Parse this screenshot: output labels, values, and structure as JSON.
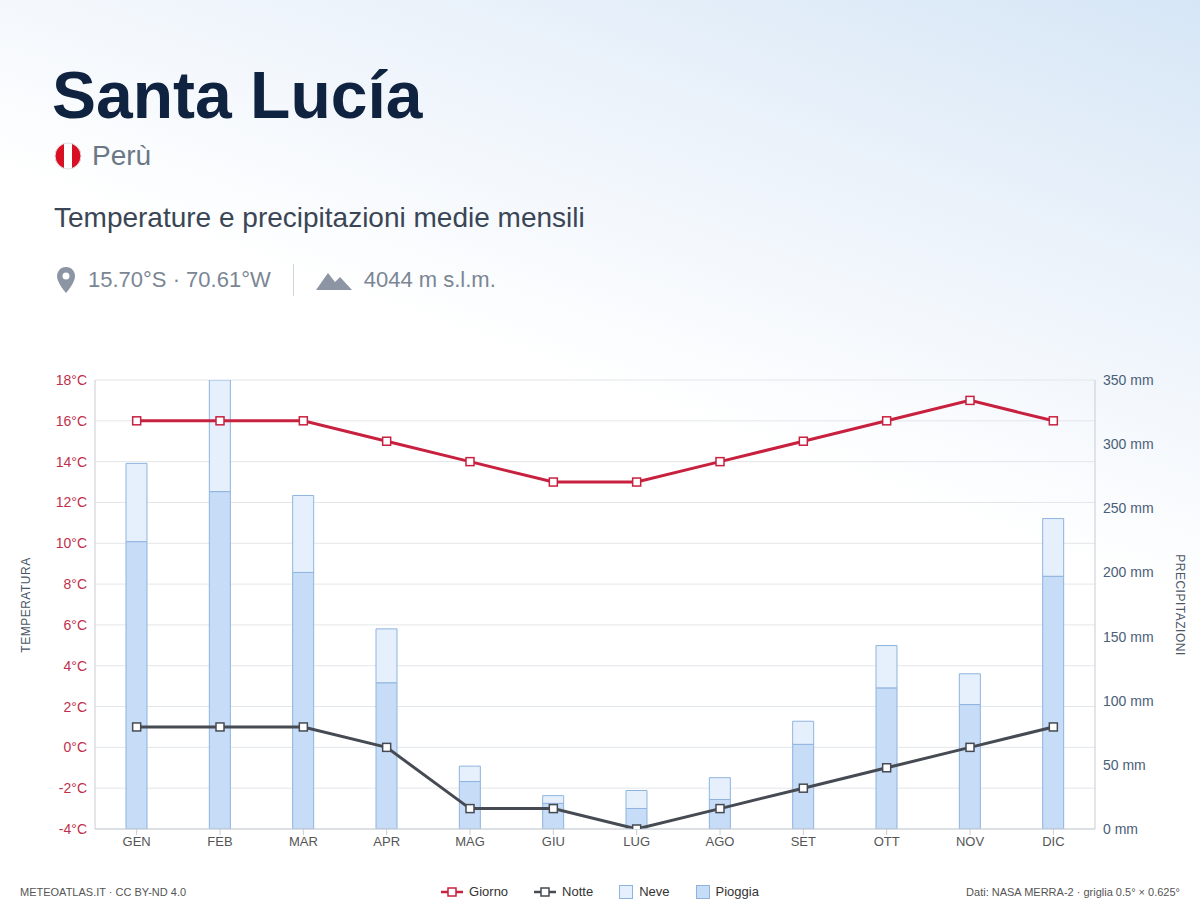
{
  "chart_data": {
    "type": "bar",
    "title": "Santa Lucía",
    "subtitle": "Temperature e precipitazioni medie mensili",
    "annotations": [
      "Perù",
      "15.70°S · 70.61°W",
      "4044 m s.l.m.",
      "METEOATLAS.IT · CC BY-ND 4.0",
      "Dati: NASA MERRA-2 · griglia 0.5° × 0.625°"
    ],
    "y_label": "TEMPERATURA",
    "y2_label": "PRECIPITAZIONI",
    "categories": [
      "GEN",
      "FEB",
      "MAR",
      "APR",
      "MAG",
      "GIU",
      "LUG",
      "AGO",
      "SET",
      "OTT",
      "NOV",
      "DIC"
    ],
    "stacked": true,
    "grid": true,
    "legend": "bottom",
    "ylim": [
      -4,
      18
    ],
    "yticks": [
      {
        "value": -4,
        "label": "-4°C"
      },
      {
        "value": -2,
        "label": "-2°C"
      },
      {
        "value": 0,
        "label": "0°C"
      },
      {
        "value": 2,
        "label": "2°C"
      },
      {
        "value": 4,
        "label": "4°C"
      },
      {
        "value": 6,
        "label": "6°C"
      },
      {
        "value": 8,
        "label": "8°C"
      },
      {
        "value": 10,
        "label": "10°C"
      },
      {
        "value": 12,
        "label": "12°C"
      },
      {
        "value": 14,
        "label": "14°C"
      },
      {
        "value": 16,
        "label": "16°C"
      },
      {
        "value": 18,
        "label": "18°C"
      }
    ],
    "y2lim": [
      0,
      350
    ],
    "y2ticks": [
      {
        "value": 0,
        "label": "0 mm"
      },
      {
        "value": 50,
        "label": "50 mm"
      },
      {
        "value": 100,
        "label": "100 mm"
      },
      {
        "value": 150,
        "label": "150 mm"
      },
      {
        "value": 200,
        "label": "200 mm"
      },
      {
        "value": 250,
        "label": "250 mm"
      },
      {
        "value": 300,
        "label": "300 mm"
      },
      {
        "value": 350,
        "label": "350 mm"
      }
    ],
    "series": [
      {
        "name": "Giorno",
        "type": "line",
        "color": "#c8203f",
        "marker": "square",
        "values": [
          16,
          16,
          16,
          15,
          14,
          13,
          13,
          14,
          15,
          16,
          17,
          16
        ]
      },
      {
        "name": "Notte",
        "type": "line",
        "color": "#464b53",
        "marker": "square",
        "values": [
          1,
          1,
          1,
          0,
          -3,
          -3,
          -4,
          -3,
          -2,
          -1,
          0,
          1
        ]
      },
      {
        "name": "Neve",
        "type": "bar",
        "axis": "y2",
        "color": "#e6f0fc",
        "values": [
          61,
          87,
          60,
          42,
          12,
          6,
          14,
          17,
          18,
          33,
          24,
          45
        ]
      },
      {
        "name": "Pioggia",
        "type": "bar",
        "axis": "y2",
        "color": "#c6dcf7",
        "values": [
          224,
          263,
          200,
          114,
          37,
          20,
          16,
          23,
          66,
          110,
          97,
          197
        ]
      }
    ]
  }
}
